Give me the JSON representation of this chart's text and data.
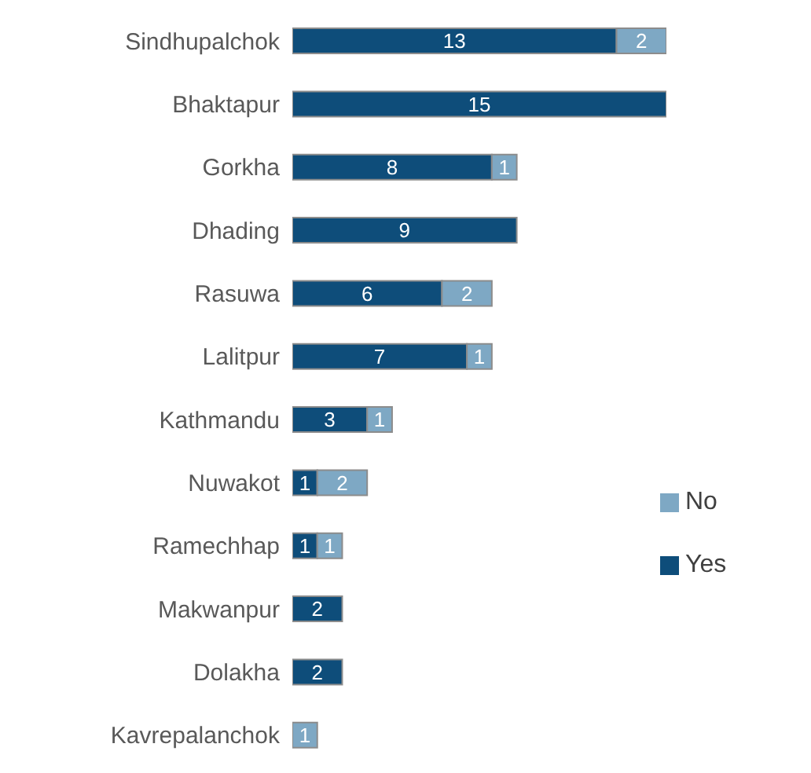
{
  "chart_data": {
    "type": "bar",
    "orientation": "horizontal",
    "stacked": true,
    "data_labels": true,
    "legend": "right",
    "categories": [
      "Sindhupalchok",
      "Bhaktapur",
      "Gorkha",
      "Dhading",
      "Rasuwa",
      "Lalitpur",
      "Kathmandu",
      "Nuwakot",
      "Ramechhap",
      "Makwanpur",
      "Dolakha",
      "Kavrepalanchok"
    ],
    "series": [
      {
        "name": "Yes",
        "color": "#0e4d7a",
        "values": [
          13,
          15,
          8,
          9,
          6,
          7,
          3,
          1,
          1,
          2,
          2,
          null
        ]
      },
      {
        "name": "No",
        "color": "#7ea8c4",
        "values": [
          2,
          null,
          1,
          null,
          2,
          1,
          1,
          2,
          1,
          null,
          null,
          1
        ]
      }
    ]
  }
}
